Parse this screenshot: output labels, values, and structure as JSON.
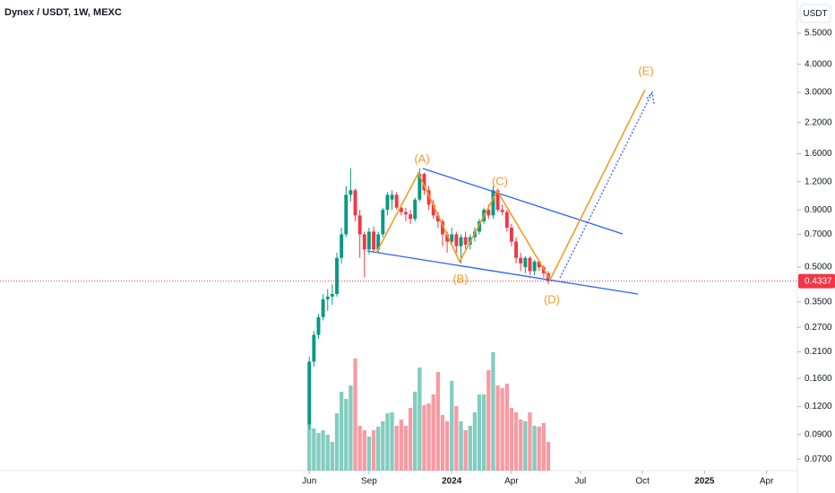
{
  "chart_data": {
    "type": "candlestick",
    "title": "Dynex / USDT, 1W, MEXC",
    "currency": "USDT",
    "log_scale": true,
    "up_color": "#089981",
    "down_color": "#f23645",
    "line_color": "#2962ff",
    "wave_color": "#f59a23",
    "last_price": 0.4337,
    "annotations": [
      "(A)",
      "(B)",
      "(C)",
      "(D)",
      "(E)"
    ],
    "ylim": [
      0.0622,
      7.73
    ],
    "yticks": [
      {
        "value": 5.5,
        "label": "5.5000"
      },
      {
        "value": 4,
        "label": "4.0000"
      },
      {
        "value": 3,
        "label": "3.0000"
      },
      {
        "value": 2.2,
        "label": "2.2000"
      },
      {
        "value": 1.6,
        "label": "1.6000"
      },
      {
        "value": 1.2,
        "label": "1.2000"
      },
      {
        "value": 0.9,
        "label": "0.9000"
      },
      {
        "value": 0.7,
        "label": "0.7000"
      },
      {
        "value": 0.5,
        "label": "0.5000"
      },
      {
        "value": 0.35,
        "label": "0.3500"
      },
      {
        "value": 0.27,
        "label": "0.2700"
      },
      {
        "value": 0.21,
        "label": "0.2100"
      },
      {
        "value": 0.16,
        "label": "0.1600"
      },
      {
        "value": 0.12,
        "label": "0.1200"
      },
      {
        "value": 0.09,
        "label": "0.0900"
      },
      {
        "value": 0.07,
        "label": "0.0700"
      }
    ],
    "xlim": [
      -67.3,
      106.2
    ],
    "xticks": [
      {
        "value": 0,
        "label": "Jun"
      },
      {
        "value": 13,
        "label": "Sep"
      },
      {
        "value": 31,
        "label": "2024"
      },
      {
        "value": 44,
        "label": "Apr"
      },
      {
        "value": 59,
        "label": "Jul"
      },
      {
        "value": 72.5,
        "label": "Oct"
      },
      {
        "value": 86,
        "label": "2025"
      },
      {
        "value": 99.5,
        "label": "Apr"
      }
    ],
    "x": [
      0,
      1,
      2,
      3,
      4,
      5,
      6,
      7,
      8,
      9,
      10,
      11,
      12,
      13,
      14,
      15,
      16,
      17,
      18,
      19,
      20,
      21,
      22,
      23,
      24,
      25,
      26,
      27,
      28,
      29,
      30,
      31,
      32,
      33,
      34,
      35,
      36,
      37,
      38,
      39,
      40,
      41,
      42,
      43,
      44,
      45,
      46,
      47,
      48,
      49,
      50,
      51,
      52
    ],
    "open": [
      0.1,
      0.19,
      0.25,
      0.3,
      0.36,
      0.37,
      0.38,
      0.55,
      0.7,
      1.05,
      1.1,
      0.85,
      0.7,
      0.6,
      0.72,
      0.6,
      0.7,
      0.9,
      1.0,
      1.05,
      0.92,
      0.88,
      0.86,
      0.82,
      1.0,
      1.3,
      1.1,
      0.95,
      0.85,
      0.8,
      0.7,
      0.65,
      0.7,
      0.62,
      0.68,
      0.63,
      0.68,
      0.72,
      0.8,
      0.9,
      0.85,
      1.1,
      0.9,
      0.88,
      0.75,
      0.65,
      0.55,
      0.5,
      0.55,
      0.48,
      0.53,
      0.5,
      0.47
    ],
    "high": [
      0.2,
      0.26,
      0.31,
      0.38,
      0.4,
      0.42,
      0.58,
      0.75,
      1.15,
      1.38,
      1.12,
      0.9,
      0.72,
      0.75,
      0.76,
      0.72,
      0.92,
      1.08,
      1.1,
      1.08,
      0.95,
      0.92,
      0.9,
      1.02,
      1.38,
      1.32,
      1.15,
      1.0,
      0.88,
      0.82,
      0.72,
      0.75,
      0.72,
      0.7,
      0.72,
      0.7,
      0.75,
      0.82,
      0.92,
      0.95,
      1.15,
      1.12,
      0.95,
      0.9,
      0.78,
      0.68,
      0.58,
      0.56,
      0.56,
      0.54,
      0.54,
      0.51,
      0.48
    ],
    "low": [
      0.095,
      0.18,
      0.24,
      0.29,
      0.32,
      0.34,
      0.37,
      0.52,
      0.68,
      0.98,
      0.8,
      0.55,
      0.45,
      0.57,
      0.58,
      0.58,
      0.68,
      0.85,
      0.9,
      0.9,
      0.85,
      0.8,
      0.78,
      0.8,
      0.98,
      1.05,
      0.9,
      0.82,
      0.75,
      0.62,
      0.58,
      0.62,
      0.58,
      0.52,
      0.6,
      0.6,
      0.65,
      0.7,
      0.78,
      0.82,
      0.82,
      0.88,
      0.85,
      0.72,
      0.62,
      0.52,
      0.48,
      0.47,
      0.46,
      0.46,
      0.48,
      0.45,
      0.42
    ],
    "close": [
      0.19,
      0.25,
      0.3,
      0.36,
      0.37,
      0.38,
      0.55,
      0.7,
      1.05,
      1.1,
      0.85,
      0.7,
      0.6,
      0.72,
      0.6,
      0.7,
      0.9,
      1.05,
      1.05,
      0.92,
      0.88,
      0.86,
      0.82,
      1.0,
      1.3,
      1.1,
      0.95,
      0.85,
      0.8,
      0.7,
      0.65,
      0.7,
      0.62,
      0.68,
      0.63,
      0.68,
      0.72,
      0.8,
      0.9,
      0.85,
      1.1,
      0.9,
      0.88,
      0.75,
      0.65,
      0.55,
      0.52,
      0.55,
      0.48,
      0.53,
      0.5,
      0.47,
      0.4337
    ],
    "volume": [
      53,
      47,
      42,
      45,
      40,
      32,
      64,
      88,
      80,
      95,
      125,
      50,
      45,
      38,
      45,
      49,
      55,
      64,
      65,
      50,
      57,
      50,
      70,
      88,
      115,
      73,
      75,
      85,
      110,
      62,
      55,
      100,
      72,
      55,
      45,
      50,
      65,
      85,
      85,
      112,
      132,
      95,
      92,
      97,
      70,
      65,
      57,
      55,
      65,
      50,
      49,
      53,
      32
    ]
  }
}
